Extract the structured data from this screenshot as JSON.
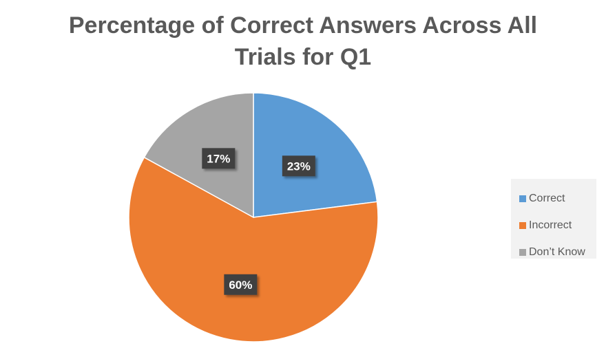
{
  "chart_data": {
    "type": "pie",
    "title": "Percentage of Correct Answers Across All Trials for Q1",
    "categories": [
      "Correct",
      "Incorrect",
      "Don’t Know"
    ],
    "values": [
      23,
      60,
      17
    ],
    "data_labels": [
      "23%",
      "60%",
      "17%"
    ],
    "colors": [
      "#5b9bd5",
      "#ed7d31",
      "#a5a5a5"
    ],
    "legend_position": "right"
  }
}
